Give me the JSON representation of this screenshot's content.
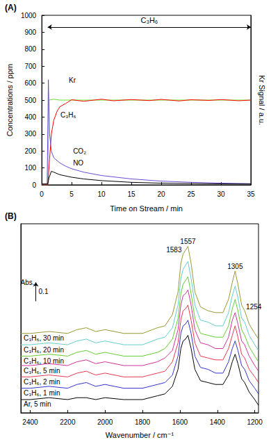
{
  "chart_data": [
    {
      "type": "line",
      "title": "(A)",
      "xlabel": "Time on Stream / min",
      "ylabel": "Concentrations / ppm",
      "y2label": "Kr Signal / a.u.",
      "xlim": [
        0,
        35
      ],
      "xticks": [
        0,
        5,
        10,
        15,
        20,
        25,
        30,
        35
      ],
      "ylim": [
        0,
        1000
      ],
      "yticks": [
        0,
        100,
        200,
        300,
        400,
        500,
        600,
        700,
        800,
        900,
        1000
      ],
      "y2lim": [
        0,
        1000
      ],
      "y2ticks": [],
      "grid": false,
      "series": [
        {
          "name": "Kr",
          "color": "#66dd33",
          "axis": "y2",
          "x": [
            0,
            1.0,
            1.2,
            2,
            3,
            5,
            10,
            15,
            20,
            25,
            30,
            35
          ],
          "values": [
            0,
            0,
            500,
            505,
            500,
            500,
            500,
            500,
            500,
            500,
            500,
            500
          ]
        },
        {
          "name": "C₃H₆",
          "color": "#ff0000",
          "x": [
            0,
            1.0,
            1.3,
            1.6,
            2,
            2.5,
            3,
            4,
            5,
            7,
            10,
            12,
            15,
            18,
            20,
            23,
            25,
            28,
            30,
            33,
            35
          ],
          "values": [
            0,
            0,
            150,
            300,
            380,
            430,
            460,
            480,
            502,
            493,
            505,
            496,
            503,
            497,
            504,
            495,
            502,
            498,
            503,
            496,
            500
          ]
        },
        {
          "name": "CO₂",
          "color": "#6a4bd6",
          "x": [
            0,
            0.9,
            1.1,
            1.3,
            1.6,
            2,
            3,
            4,
            5,
            7,
            10,
            15,
            20,
            25,
            30,
            35
          ],
          "values": [
            5,
            5,
            620,
            300,
            200,
            160,
            130,
            110,
            95,
            75,
            55,
            35,
            22,
            15,
            10,
            7
          ]
        },
        {
          "name": "NO",
          "color": "#000000",
          "x": [
            0,
            1.0,
            1.2,
            1.6,
            2,
            3,
            5,
            7,
            10,
            15,
            20,
            25,
            30,
            35
          ],
          "values": [
            5,
            5,
            40,
            80,
            75,
            60,
            45,
            35,
            25,
            15,
            10,
            8,
            6,
            5
          ]
        }
      ],
      "annotations": [
        {
          "text": "C₃H₆",
          "x": [
            1,
            35
          ],
          "y": 930
        },
        {
          "text": "Kr",
          "x": 4.3,
          "y": 615
        },
        {
          "text": "C₃H₆",
          "x": 2.9,
          "y": 410
        },
        {
          "text": "CO₂",
          "x": 5,
          "y": 200
        },
        {
          "text": "NO",
          "x": 5,
          "y": 130
        }
      ]
    },
    {
      "type": "line",
      "title": "(B)",
      "xlabel": "Wavenumber / cm⁻¹",
      "xlim": [
        2450,
        1180
      ],
      "xticks": [
        2400,
        2200,
        2000,
        1800,
        1600,
        1400,
        1200
      ],
      "ylim": [
        0,
        1
      ],
      "yticks": [],
      "tick_labels": "x",
      "grid": false,
      "x": [
        2450,
        2400,
        2300,
        2200,
        2150,
        2100,
        2050,
        2000,
        1900,
        1800,
        1720,
        1680,
        1640,
        1610,
        1595,
        1583,
        1570,
        1557,
        1540,
        1520,
        1490,
        1450,
        1410,
        1370,
        1340,
        1320,
        1305,
        1290,
        1270,
        1254,
        1230,
        1200,
        1180
      ],
      "series": [
        {
          "name": "Ar, 5 min",
          "color": "#000000",
          "values": [
            0.07,
            0.07,
            0.08,
            0.07,
            0.08,
            0.08,
            0.07,
            0.08,
            0.07,
            0.07,
            0.09,
            0.1,
            0.14,
            0.23,
            0.34,
            0.38,
            0.39,
            0.41,
            0.34,
            0.23,
            0.17,
            0.16,
            0.15,
            0.15,
            0.2,
            0.27,
            0.31,
            0.26,
            0.18,
            0.16,
            0.11,
            0.07,
            0.04
          ]
        },
        {
          "name": "C₃H₆, 1 min",
          "color": "#3333cc",
          "values": [
            0.13,
            0.13,
            0.14,
            0.13,
            0.15,
            0.16,
            0.14,
            0.15,
            0.13,
            0.13,
            0.15,
            0.16,
            0.2,
            0.3,
            0.42,
            0.46,
            0.47,
            0.49,
            0.42,
            0.3,
            0.24,
            0.23,
            0.21,
            0.21,
            0.27,
            0.34,
            0.38,
            0.33,
            0.25,
            0.23,
            0.17,
            0.13,
            0.1
          ]
        },
        {
          "name": "C₃H₆, 2 min",
          "color": "#e8384f",
          "values": [
            0.19,
            0.19,
            0.2,
            0.19,
            0.21,
            0.22,
            0.2,
            0.21,
            0.19,
            0.19,
            0.21,
            0.22,
            0.27,
            0.37,
            0.49,
            0.54,
            0.55,
            0.57,
            0.49,
            0.37,
            0.3,
            0.29,
            0.28,
            0.28,
            0.34,
            0.41,
            0.46,
            0.4,
            0.31,
            0.29,
            0.23,
            0.19,
            0.16
          ]
        },
        {
          "name": "C₃H₆, 5 min",
          "color": "#cc3399",
          "values": [
            0.25,
            0.25,
            0.26,
            0.25,
            0.27,
            0.28,
            0.26,
            0.27,
            0.25,
            0.25,
            0.27,
            0.29,
            0.33,
            0.44,
            0.57,
            0.62,
            0.63,
            0.65,
            0.57,
            0.44,
            0.37,
            0.36,
            0.34,
            0.34,
            0.4,
            0.49,
            0.53,
            0.47,
            0.38,
            0.36,
            0.3,
            0.25,
            0.22
          ]
        },
        {
          "name": "C₃H₆, 10 min",
          "color": "#66cc33",
          "values": [
            0.3,
            0.3,
            0.31,
            0.3,
            0.32,
            0.33,
            0.31,
            0.32,
            0.3,
            0.3,
            0.32,
            0.34,
            0.39,
            0.5,
            0.63,
            0.68,
            0.7,
            0.72,
            0.63,
            0.5,
            0.42,
            0.41,
            0.4,
            0.4,
            0.46,
            0.55,
            0.6,
            0.54,
            0.44,
            0.41,
            0.35,
            0.3,
            0.27
          ]
        },
        {
          "name": "C₃H₆, 20 min",
          "color": "#66cccc",
          "values": [
            0.36,
            0.36,
            0.37,
            0.36,
            0.38,
            0.39,
            0.37,
            0.38,
            0.36,
            0.36,
            0.39,
            0.4,
            0.45,
            0.57,
            0.71,
            0.76,
            0.78,
            0.8,
            0.71,
            0.57,
            0.49,
            0.48,
            0.46,
            0.46,
            0.53,
            0.62,
            0.67,
            0.61,
            0.5,
            0.48,
            0.41,
            0.36,
            0.33
          ]
        },
        {
          "name": "C₃H₆, 30 min",
          "color": "#999933",
          "values": [
            0.42,
            0.42,
            0.43,
            0.42,
            0.44,
            0.45,
            0.43,
            0.44,
            0.42,
            0.42,
            0.45,
            0.46,
            0.52,
            0.64,
            0.79,
            0.84,
            0.86,
            0.88,
            0.79,
            0.64,
            0.56,
            0.54,
            0.53,
            0.53,
            0.6,
            0.69,
            0.75,
            0.68,
            0.57,
            0.54,
            0.47,
            0.42,
            0.39
          ]
        }
      ],
      "peak_labels": [
        1583,
        1557,
        1305,
        1254
      ],
      "scale_bar": {
        "label": "Abs.",
        "value": 0.1,
        "x": 2370,
        "y": 0.59
      }
    }
  ]
}
